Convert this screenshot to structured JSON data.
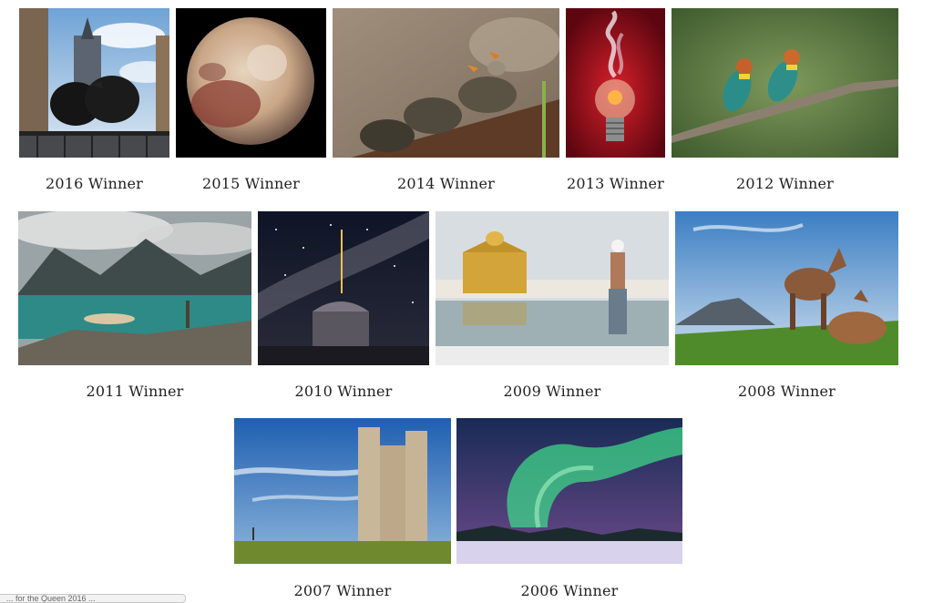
{
  "gallery": {
    "items": [
      {
        "caption": "2016 Winner",
        "subject": "ravens-on-railing-photo"
      },
      {
        "caption": "2015 Winner",
        "subject": "pluto-photo"
      },
      {
        "caption": "2014 Winner",
        "subject": "turtles-and-butterflies-photo"
      },
      {
        "caption": "2013 Winner",
        "subject": "smoking-lightbulb-photo"
      },
      {
        "caption": "2012 Winner",
        "subject": "bee-eaters-on-branch-photo"
      },
      {
        "caption": "2011 Winner",
        "subject": "mountain-lake-rowboat-photo"
      },
      {
        "caption": "2010 Winner",
        "subject": "observatory-milky-way-photo"
      },
      {
        "caption": "2009 Winner",
        "subject": "golden-temple-pilgrim-photo"
      },
      {
        "caption": "2008 Winner",
        "subject": "horses-on-hillside-photo"
      },
      {
        "caption": "2007 Winner",
        "subject": "stone-tower-photo"
      },
      {
        "caption": "2006 Winner",
        "subject": "aurora-borealis-photo"
      }
    ]
  },
  "status_bar": {
    "text": "... for the Queen 2016 ..."
  }
}
